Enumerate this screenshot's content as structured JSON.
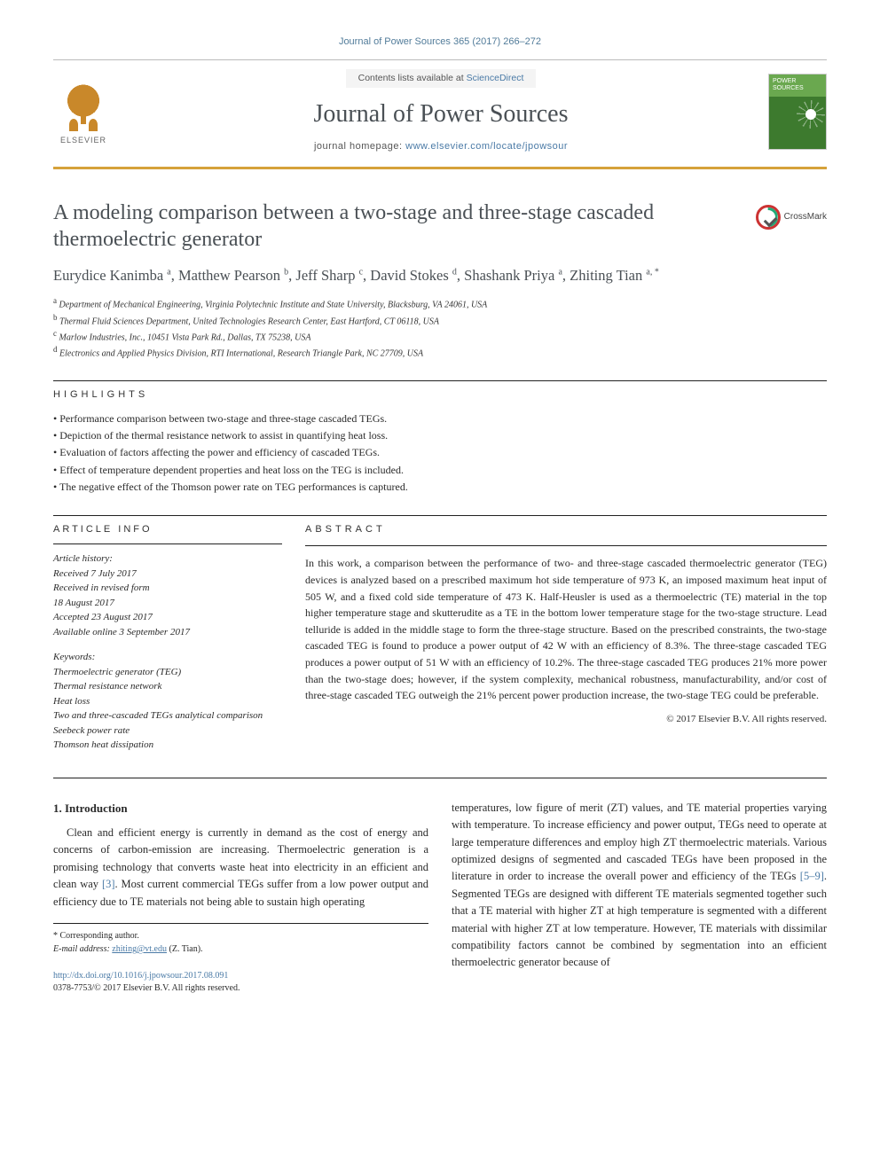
{
  "citation": "Journal of Power Sources 365 (2017) 266–272",
  "masthead": {
    "contents_prefix": "Contents lists available at ",
    "contents_link": "ScienceDirect",
    "journal_name": "Journal of Power Sources",
    "homepage_prefix": "journal homepage: ",
    "homepage_url": "www.elsevier.com/locate/jpowsour",
    "publisher_name": "ELSEVIER",
    "cover_label": "POWER SOURCES"
  },
  "crossmark_label": "CrossMark",
  "title": "A modeling comparison between a two-stage and three-stage cascaded thermoelectric generator",
  "authors_html": "Eurydice Kanimba <sup>a</sup>, Matthew Pearson <sup>b</sup>, Jeff Sharp <sup>c</sup>, David Stokes <sup>d</sup>, Shashank Priya <sup>a</sup>, Zhiting Tian <sup>a, *</sup>",
  "affiliations": [
    "a Department of Mechanical Engineering, Virginia Polytechnic Institute and State University, Blacksburg, VA 24061, USA",
    "b Thermal Fluid Sciences Department, United Technologies Research Center, East Hartford, CT 06118, USA",
    "c Marlow Industries, Inc., 10451 Vista Park Rd., Dallas, TX 75238, USA",
    "d Electronics and Applied Physics Division, RTI International, Research Triangle Park, NC 27709, USA"
  ],
  "highlights_label": "HIGHLIGHTS",
  "highlights": [
    "Performance comparison between two-stage and three-stage cascaded TEGs.",
    "Depiction of the thermal resistance network to assist in quantifying heat loss.",
    "Evaluation of factors affecting the power and efficiency of cascaded TEGs.",
    "Effect of temperature dependent properties and heat loss on the TEG is included.",
    "The negative effect of the Thomson power rate on TEG performances is captured."
  ],
  "article_info": {
    "label": "ARTICLE INFO",
    "history_hdr": "Article history:",
    "history": [
      "Received 7 July 2017",
      "Received in revised form",
      "18 August 2017",
      "Accepted 23 August 2017",
      "Available online 3 September 2017"
    ],
    "keywords_hdr": "Keywords:",
    "keywords": [
      "Thermoelectric generator (TEG)",
      "Thermal resistance network",
      "Heat loss",
      "Two and three-cascaded TEGs analytical comparison",
      "Seebeck power rate",
      "Thomson heat dissipation"
    ]
  },
  "abstract": {
    "label": "ABSTRACT",
    "text": "In this work, a comparison between the performance of two- and three-stage cascaded thermoelectric generator (TEG) devices is analyzed based on a prescribed maximum hot side temperature of 973 K, an imposed maximum heat input of 505 W, and a fixed cold side temperature of 473 K. Half-Heusler is used as a thermoelectric (TE) material in the top higher temperature stage and skutterudite as a TE in the bottom lower temperature stage for the two-stage structure. Lead telluride is added in the middle stage to form the three-stage structure. Based on the prescribed constraints, the two-stage cascaded TEG is found to produce a power output of 42 W with an efficiency of 8.3%. The three-stage cascaded TEG produces a power output of 51 W with an efficiency of 10.2%. The three-stage cascaded TEG produces 21% more power than the two-stage does; however, if the system complexity, mechanical robustness, manufacturability, and/or cost of three-stage cascaded TEG outweigh the 21% percent power production increase, the two-stage TEG could be preferable.",
    "copyright": "© 2017 Elsevier B.V. All rights reserved."
  },
  "body": {
    "intro_heading": "1. Introduction",
    "intro_p1": "Clean and efficient energy is currently in demand as the cost of energy and concerns of carbon-emission are increasing. Thermoelectric generation is a promising technology that converts waste heat into electricity in an efficient and clean way [3]. Most current commercial TEGs suffer from a low power output and efficiency due to TE materials not being able to sustain high operating",
    "intro_p2": "temperatures, low figure of merit (ZT) values, and TE material properties varying with temperature. To increase efficiency and power output, TEGs need to operate at large temperature differences and employ high ZT thermoelectric materials. Various optimized designs of segmented and cascaded TEGs have been proposed in the literature in order to increase the overall power and efficiency of the TEGs [5–9]. Segmented TEGs are designed with different TE materials segmented together such that a TE material with higher ZT at high temperature is segmented with a different material with higher ZT at low temperature. However, TE materials with dissimilar compatibility factors cannot be combined by segmentation into an efficient thermoelectric generator because of"
  },
  "footnote": {
    "corr_label": "* Corresponding author.",
    "email_label": "E-mail address:",
    "email": "zhiting@vt.edu",
    "email_who": "(Z. Tian)."
  },
  "doi": {
    "url": "http://dx.doi.org/10.1016/j.jpowsour.2017.08.091",
    "issn_line": "0378-7753/© 2017 Elsevier B.V. All rights reserved."
  },
  "colors": {
    "accent_link": "#4a7aa6",
    "rule_gold": "#d6a23a",
    "heading_gray": "#4a5055",
    "cover_green_top": "#6aa84f",
    "cover_green_bot": "#3d7a2e",
    "elsevier_orange": "#c9882a"
  },
  "typography": {
    "body_pt": 12.5,
    "title_pt": 24,
    "authors_pt": 16.5,
    "small_pt": 10,
    "abstract_pt": 12
  }
}
